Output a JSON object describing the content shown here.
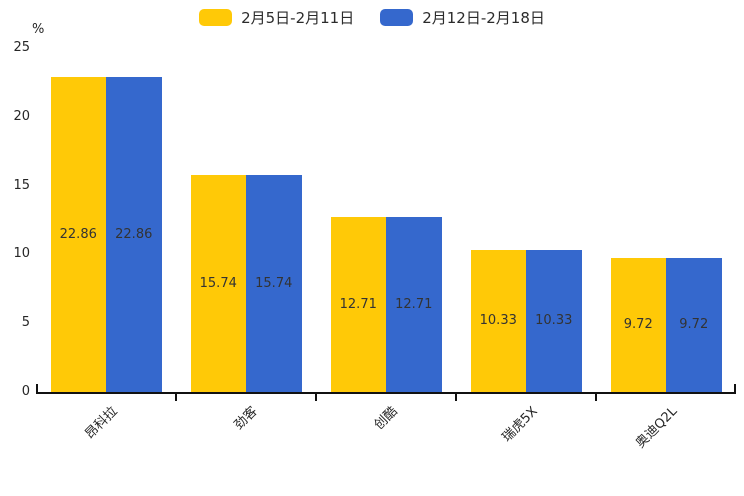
{
  "chart_data": {
    "type": "bar",
    "title": "",
    "ylabel": "%",
    "xlabel": "",
    "categories": [
      "昂科拉",
      "劲客",
      "创酷",
      "瑞虎5X",
      "奥迪Q2L"
    ],
    "series": [
      {
        "name": "2月5日-2月11日",
        "color": "#FFC907",
        "values": [
          22.86,
          15.74,
          12.71,
          10.33,
          9.72
        ]
      },
      {
        "name": "2月12日-2月18日",
        "color": "#3568CD",
        "values": [
          22.86,
          15.74,
          12.71,
          10.33,
          9.72
        ]
      }
    ],
    "ylim": [
      0,
      25
    ],
    "yticks": [
      0,
      5,
      10,
      15,
      20,
      25
    ],
    "grid": false,
    "legend_position": "top",
    "value_label_decimals": 2,
    "category_label_rotation_deg": 45,
    "colors": {
      "axis": "#111111",
      "tick_text": "#262626",
      "value_text": "#333333",
      "background": "#ffffff"
    }
  }
}
